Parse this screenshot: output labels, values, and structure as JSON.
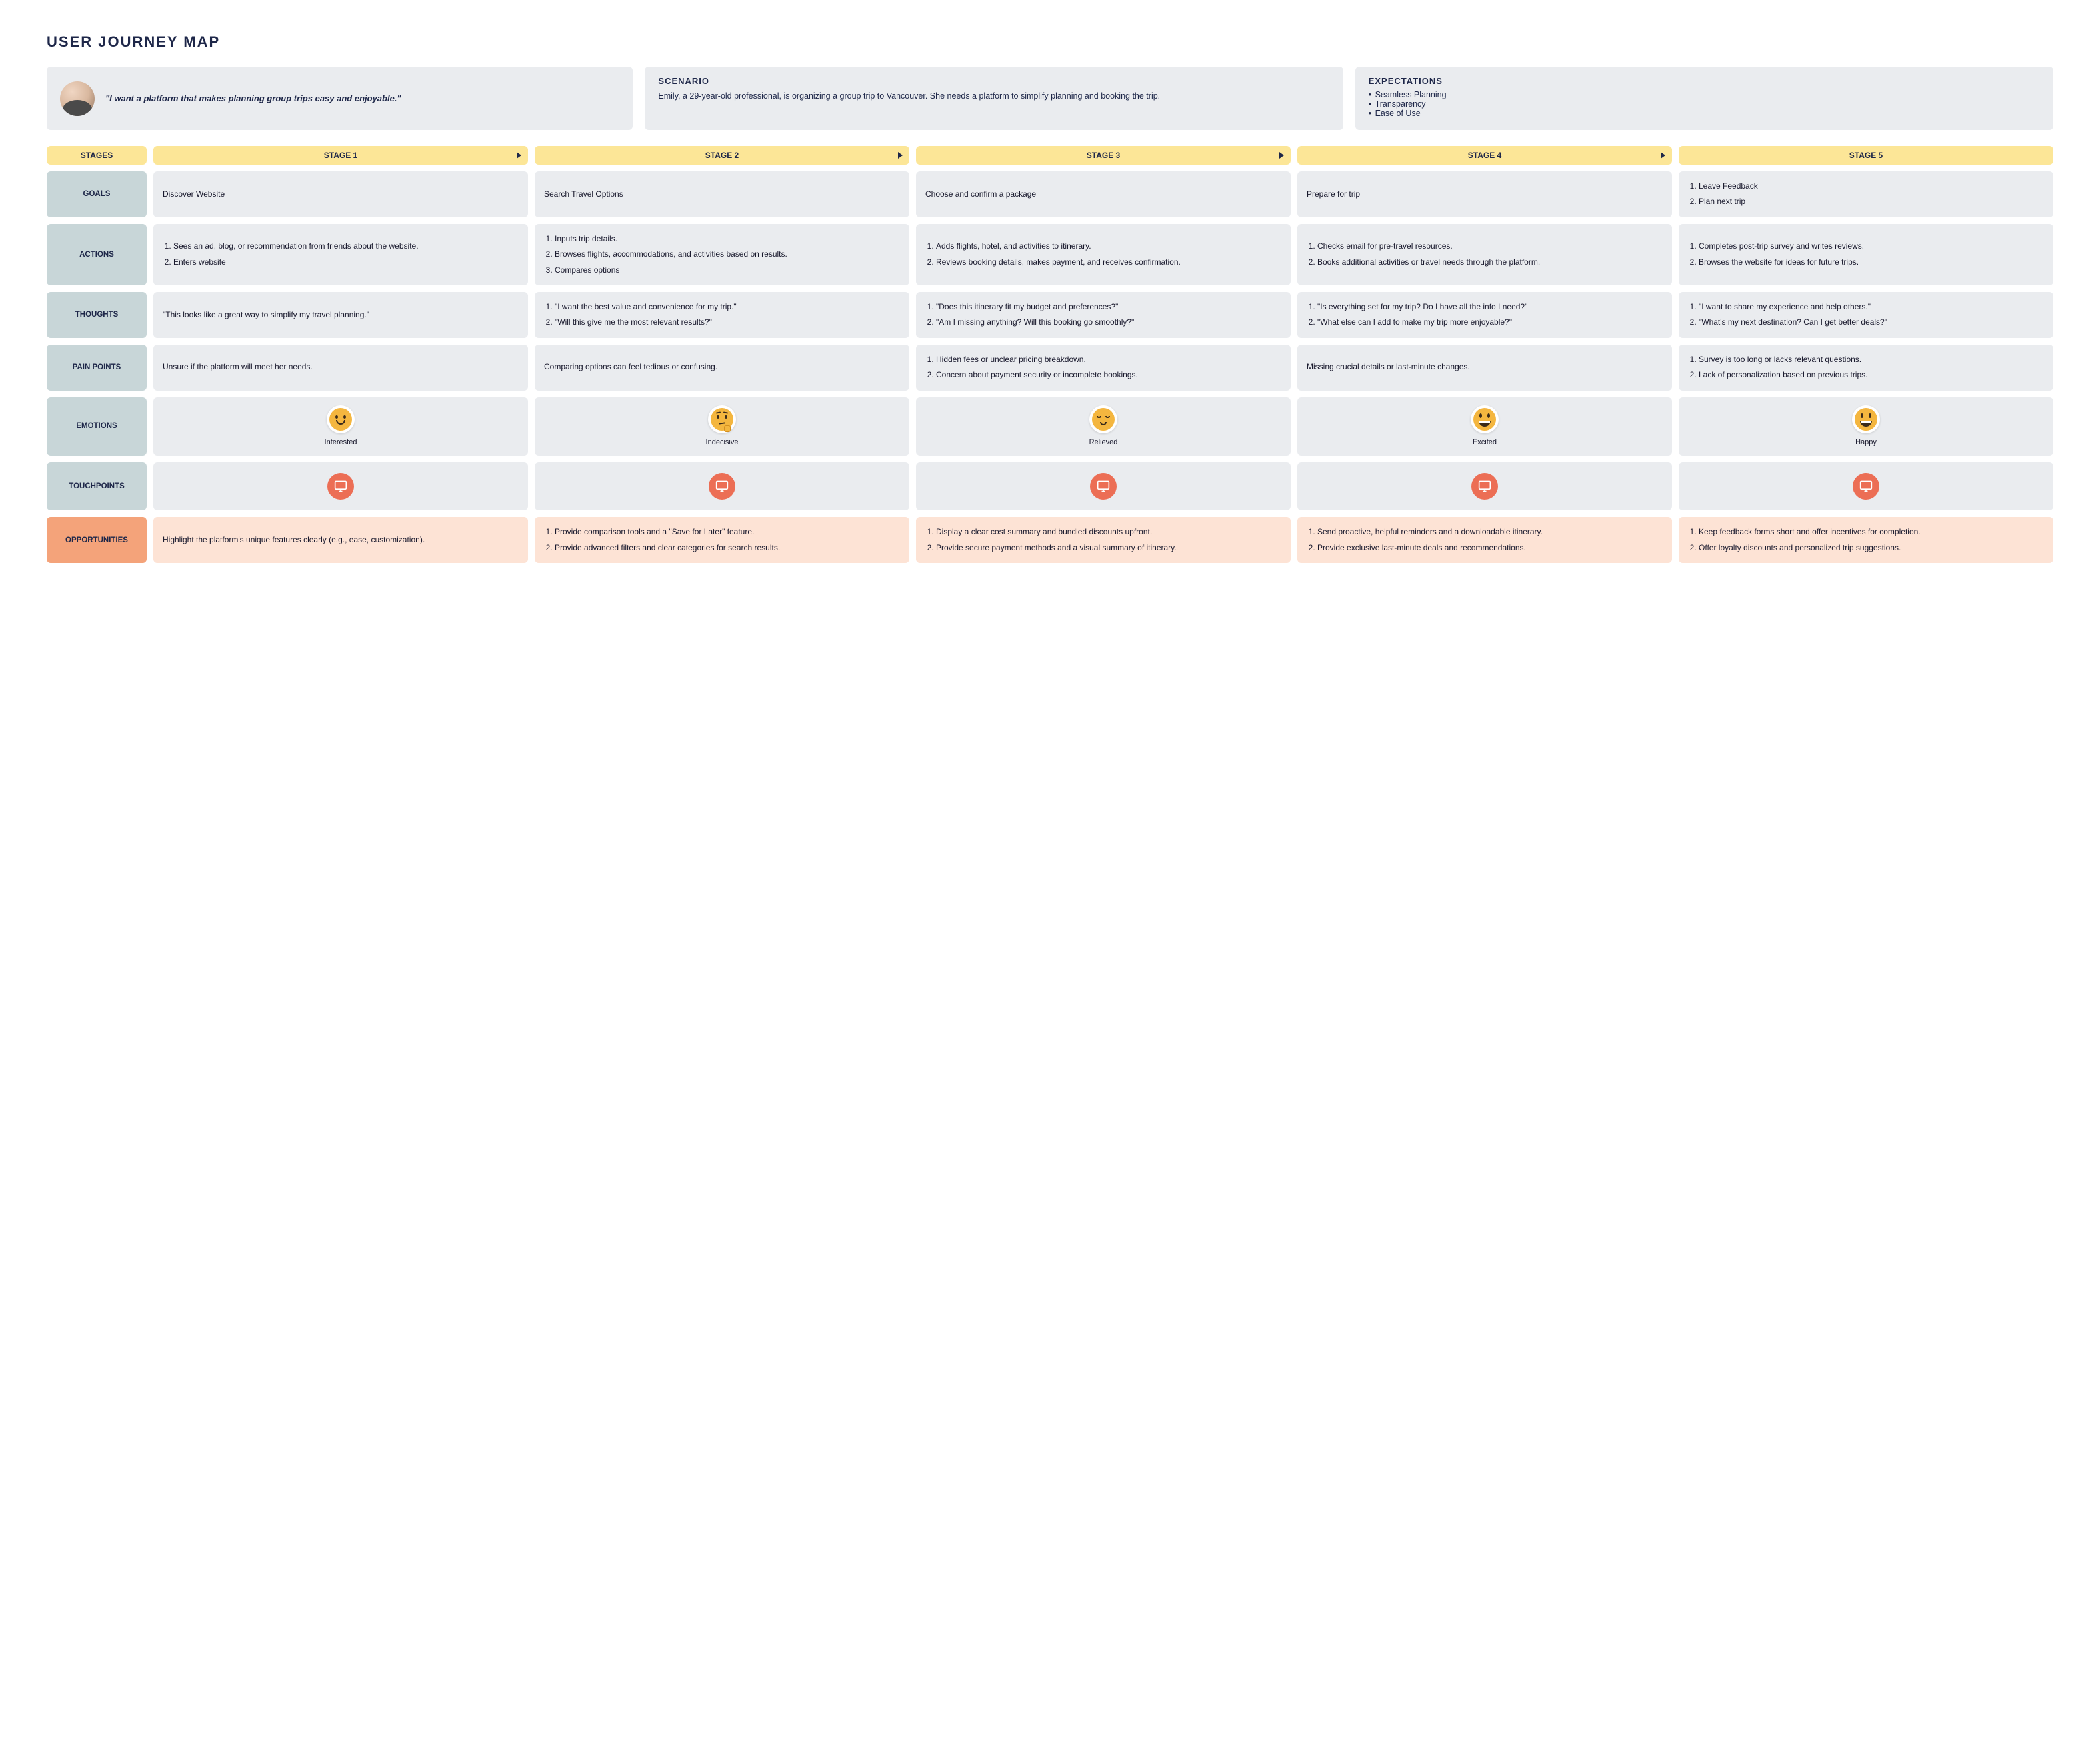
{
  "title": "USER JOURNEY MAP",
  "persona": {
    "quote": "\"I want a platform that makes planning group trips easy and enjoyable.\""
  },
  "scenario": {
    "heading": "SCENARIO",
    "text": "Emily, a 29-year-old professional, is organizing a group trip to Vancouver. She needs a platform to simplify planning and booking the trip."
  },
  "expectations": {
    "heading": "EXPECTATIONS",
    "items": [
      "Seamless Planning",
      "Transparency",
      "Ease of Use"
    ]
  },
  "stageHeaders": {
    "label": "STAGES",
    "stages": [
      "STAGE 1",
      "STAGE 2",
      "STAGE 3",
      "STAGE 4",
      "STAGE 5"
    ]
  },
  "rows": {
    "goals": {
      "label": "GOALS",
      "cells": [
        {
          "type": "text",
          "text": "Discover Website"
        },
        {
          "type": "text",
          "text": "Search Travel Options"
        },
        {
          "type": "text",
          "text": "Choose and confirm a package"
        },
        {
          "type": "text",
          "text": "Prepare for trip"
        },
        {
          "type": "list",
          "items": [
            "Leave Feedback",
            "Plan next trip"
          ]
        }
      ]
    },
    "actions": {
      "label": "ACTIONS",
      "cells": [
        {
          "type": "list",
          "items": [
            "Sees an ad, blog, or recommendation from friends about the website.",
            "Enters website"
          ]
        },
        {
          "type": "list",
          "items": [
            "Inputs trip details.",
            "Browses flights, accommodations, and activities based on results.",
            "Compares options"
          ]
        },
        {
          "type": "list",
          "items": [
            "Adds flights, hotel, and activities to itinerary.",
            "Reviews booking details, makes payment, and receives confirmation."
          ]
        },
        {
          "type": "list",
          "items": [
            "Checks email for pre-travel resources.",
            "Books additional activities or travel needs through the platform."
          ]
        },
        {
          "type": "list",
          "items": [
            "Completes post-trip survey and writes reviews.",
            "Browses the website for ideas for future trips."
          ]
        }
      ]
    },
    "thoughts": {
      "label": "THOUGHTS",
      "cells": [
        {
          "type": "text",
          "text": "\"This looks like a great way to simplify my travel planning.\""
        },
        {
          "type": "list",
          "items": [
            "\"I want the best value and convenience for my trip.\"",
            "\"Will this give me the most relevant results?\""
          ]
        },
        {
          "type": "list",
          "items": [
            "\"Does this itinerary fit my budget and preferences?\"",
            "\"Am I missing anything? Will this booking go smoothly?\""
          ]
        },
        {
          "type": "list",
          "items": [
            "\"Is everything set for my trip? Do I have all the info I need?\"",
            "\"What else can I add to make my trip more enjoyable?\""
          ]
        },
        {
          "type": "list",
          "items": [
            "\"I want to share my experience and help others.\"",
            "\"What's my next destination? Can I get better deals?\""
          ]
        }
      ]
    },
    "painpoints": {
      "label": "PAIN POINTS",
      "cells": [
        {
          "type": "text",
          "text": "Unsure if the platform will meet her needs."
        },
        {
          "type": "text",
          "text": "Comparing options can feel tedious or confusing."
        },
        {
          "type": "list",
          "items": [
            "Hidden fees or unclear pricing breakdown.",
            "Concern about payment security or incomplete bookings."
          ]
        },
        {
          "type": "text",
          "text": "Missing crucial details or last-minute changes."
        },
        {
          "type": "list",
          "items": [
            "Survey is too long or lacks relevant questions.",
            "Lack of personalization based on previous trips."
          ]
        }
      ]
    },
    "emotions": {
      "label": "EMOTIONS",
      "cells": [
        {
          "emoji": "smile",
          "label": "Interested"
        },
        {
          "emoji": "thinking",
          "label": "Indecisive"
        },
        {
          "emoji": "relieved",
          "label": "Relieved"
        },
        {
          "emoji": "grin",
          "label": "Excited"
        },
        {
          "emoji": "grin",
          "label": "Happy"
        }
      ]
    },
    "touchpoints": {
      "label": "TOUCHPOINTS",
      "icon": "monitor"
    },
    "opportunities": {
      "label": "OPPORTUNITIES",
      "cells": [
        {
          "type": "text",
          "text": "Highlight the platform's unique features clearly (e.g., ease, customization)."
        },
        {
          "type": "list",
          "items": [
            "Provide comparison tools and a \"Save for Later\" feature.",
            "Provide advanced filters and clear categories for search results."
          ]
        },
        {
          "type": "list",
          "items": [
            "Display a clear cost summary and bundled discounts upfront.",
            "Provide secure payment methods and a visual summary of itinerary."
          ]
        },
        {
          "type": "list",
          "items": [
            "Send proactive, helpful reminders and a downloadable itinerary.",
            "Provide exclusive last-minute deals and recommendations."
          ]
        },
        {
          "type": "list",
          "items": [
            "Keep feedback forms short and offer incentives for completion.",
            "Offer loyalty discounts and personalized trip suggestions."
          ]
        }
      ]
    }
  },
  "colors": {
    "stage_header_bg": "#fce697",
    "row_label_bg": "#c8d6d8",
    "cell_bg": "#eaecef",
    "opp_label_bg": "#f4a37a",
    "opp_cell_bg": "#fde3d5",
    "touch_icon_bg": "#ec6e55",
    "emoji_face": "#f4b63f",
    "title_color": "#1e2749"
  }
}
